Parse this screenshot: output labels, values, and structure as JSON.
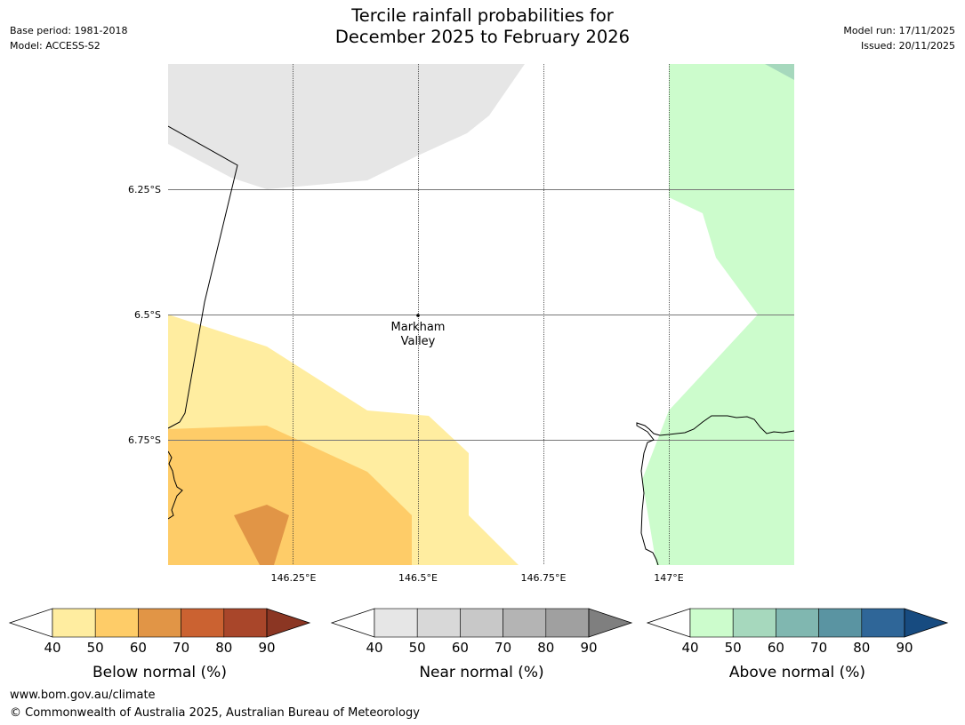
{
  "title": {
    "line1": "Tercile rainfall probabilities for",
    "line2": "December 2025 to February 2026"
  },
  "meta": {
    "base_period": "Base period: 1981-2018",
    "model": "Model: ACCESS-S2",
    "model_run": "Model run: 17/11/2025",
    "issued": "Issued: 20/11/2025"
  },
  "map": {
    "lat_labels": [
      "6.25°S",
      "6.5°S",
      "6.75°S"
    ],
    "lon_labels": [
      "146.25°E",
      "146.5°E",
      "146.75°E",
      "147°E"
    ],
    "place": {
      "name_line1": "Markham",
      "name_line2": "Valley"
    }
  },
  "legends": [
    {
      "name": "below",
      "title": "Below normal (%)",
      "ticks": [
        "40",
        "50",
        "60",
        "70",
        "80",
        "90"
      ],
      "colors": [
        "#ffeda0",
        "#fecc68",
        "#e19546",
        "#cb6231",
        "#a9462a"
      ],
      "over_color": "#8b3623"
    },
    {
      "name": "near",
      "title": "Near normal (%)",
      "ticks": [
        "40",
        "50",
        "60",
        "70",
        "80",
        "90"
      ],
      "colors": [
        "#e6e6e6",
        "#d8d8d8",
        "#c8c8c8",
        "#b4b4b4",
        "#a0a0a0"
      ],
      "over_color": "#7f7f7f"
    },
    {
      "name": "above",
      "title": "Above normal (%)",
      "ticks": [
        "40",
        "50",
        "60",
        "70",
        "80",
        "90"
      ],
      "colors": [
        "#ccfccc",
        "#a6d8bd",
        "#80b7b0",
        "#5a94a2",
        "#2f6698"
      ],
      "over_color": "#174b80"
    }
  ],
  "footer": {
    "url": "www.bom.gov.au/climate",
    "copyright": "© Commonwealth of Australia 2025, Australian Bureau of Meteorology"
  }
}
